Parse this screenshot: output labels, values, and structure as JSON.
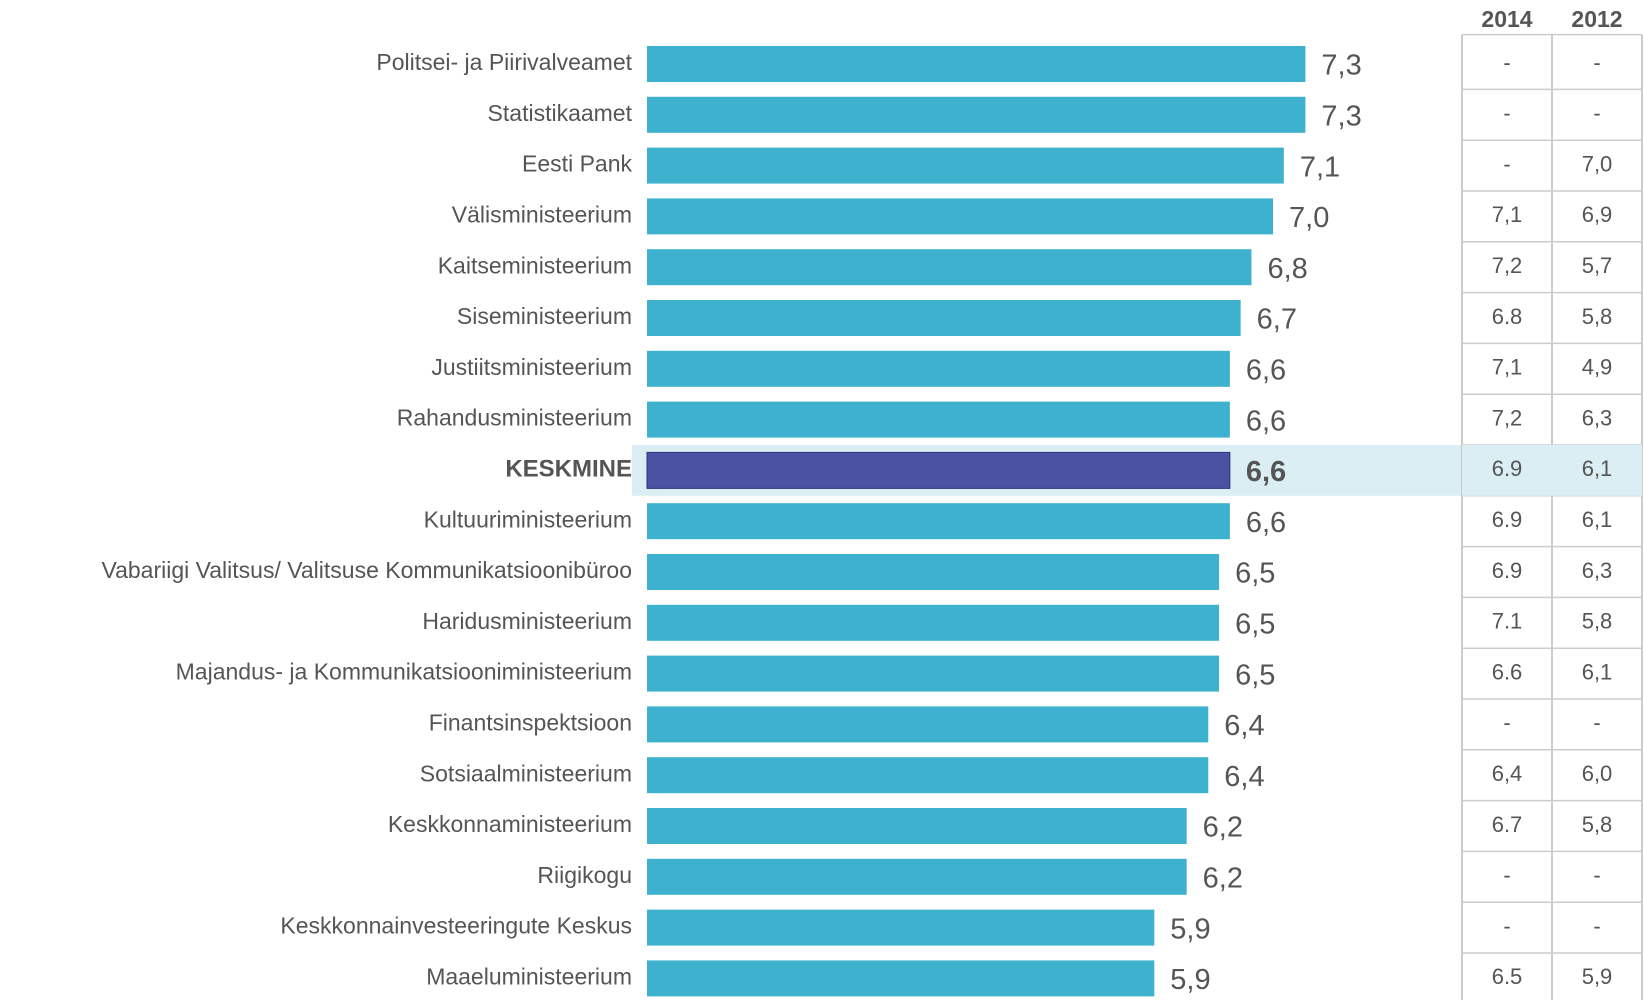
{
  "chart_data": {
    "type": "bar",
    "orientation": "horizontal",
    "categories": [
      "Politsei- ja Piirivalveamet",
      "Statistikaamet",
      "Eesti Pank",
      "Välisministeerium",
      "Kaitseministeerium",
      "Siseministeerium",
      "Justiitsministeerium",
      "Rahandusministeerium",
      "KESKMINE",
      "Kultuuriministeerium",
      "Vabariigi Valitsus/ Valitsuse Kommunikatsioonibüroo",
      "Haridusministeerium",
      "Majandus- ja Kommunikatsiooniministeerium",
      "Finantsinspektsioon",
      "Sotsiaalministeerium",
      "Keskkonnaministeerium",
      "Riigikogu",
      "Keskkonnainvesteeringute Keskus",
      "Maaeluministeerium"
    ],
    "values": [
      7.3,
      7.3,
      7.1,
      7.0,
      6.8,
      6.7,
      6.6,
      6.6,
      6.6,
      6.6,
      6.5,
      6.5,
      6.5,
      6.4,
      6.4,
      6.2,
      6.2,
      5.9,
      5.9
    ],
    "value_labels": [
      "7,3",
      "7,3",
      "7,1",
      "7,0",
      "6,8",
      "6,7",
      "6,6",
      "6,6",
      "6,6",
      "6,6",
      "6,5",
      "6,5",
      "6,5",
      "6,4",
      "6,4",
      "6,2",
      "6,2",
      "5,9",
      "5,9"
    ],
    "color": "#3db1cd",
    "highlight": 8,
    "highlight_color": "#4a52a3",
    "xlim": [
      1.2,
      7.5
    ]
  },
  "table": {
    "columns": [
      "2014",
      "2012"
    ],
    "rows": [
      [
        "-",
        "-"
      ],
      [
        "-",
        "-"
      ],
      [
        "-",
        "7,0"
      ],
      [
        "7,1",
        "6,9"
      ],
      [
        "7,2",
        "5,7"
      ],
      [
        "6.8",
        "5,8"
      ],
      [
        "7,1",
        "4,9"
      ],
      [
        "7,2",
        "6,3"
      ],
      [
        "6.9",
        "6,1"
      ],
      [
        "6.9",
        "6,1"
      ],
      [
        "6.9",
        "6,3"
      ],
      [
        "7.1",
        "5,8"
      ],
      [
        "6.6",
        "6,1"
      ],
      [
        "-",
        "-"
      ],
      [
        "6,4",
        "6,0"
      ],
      [
        "6.7",
        "5,8"
      ],
      [
        "-",
        "-"
      ],
      [
        "-",
        "-"
      ],
      [
        "6.5",
        "5,9"
      ]
    ]
  }
}
